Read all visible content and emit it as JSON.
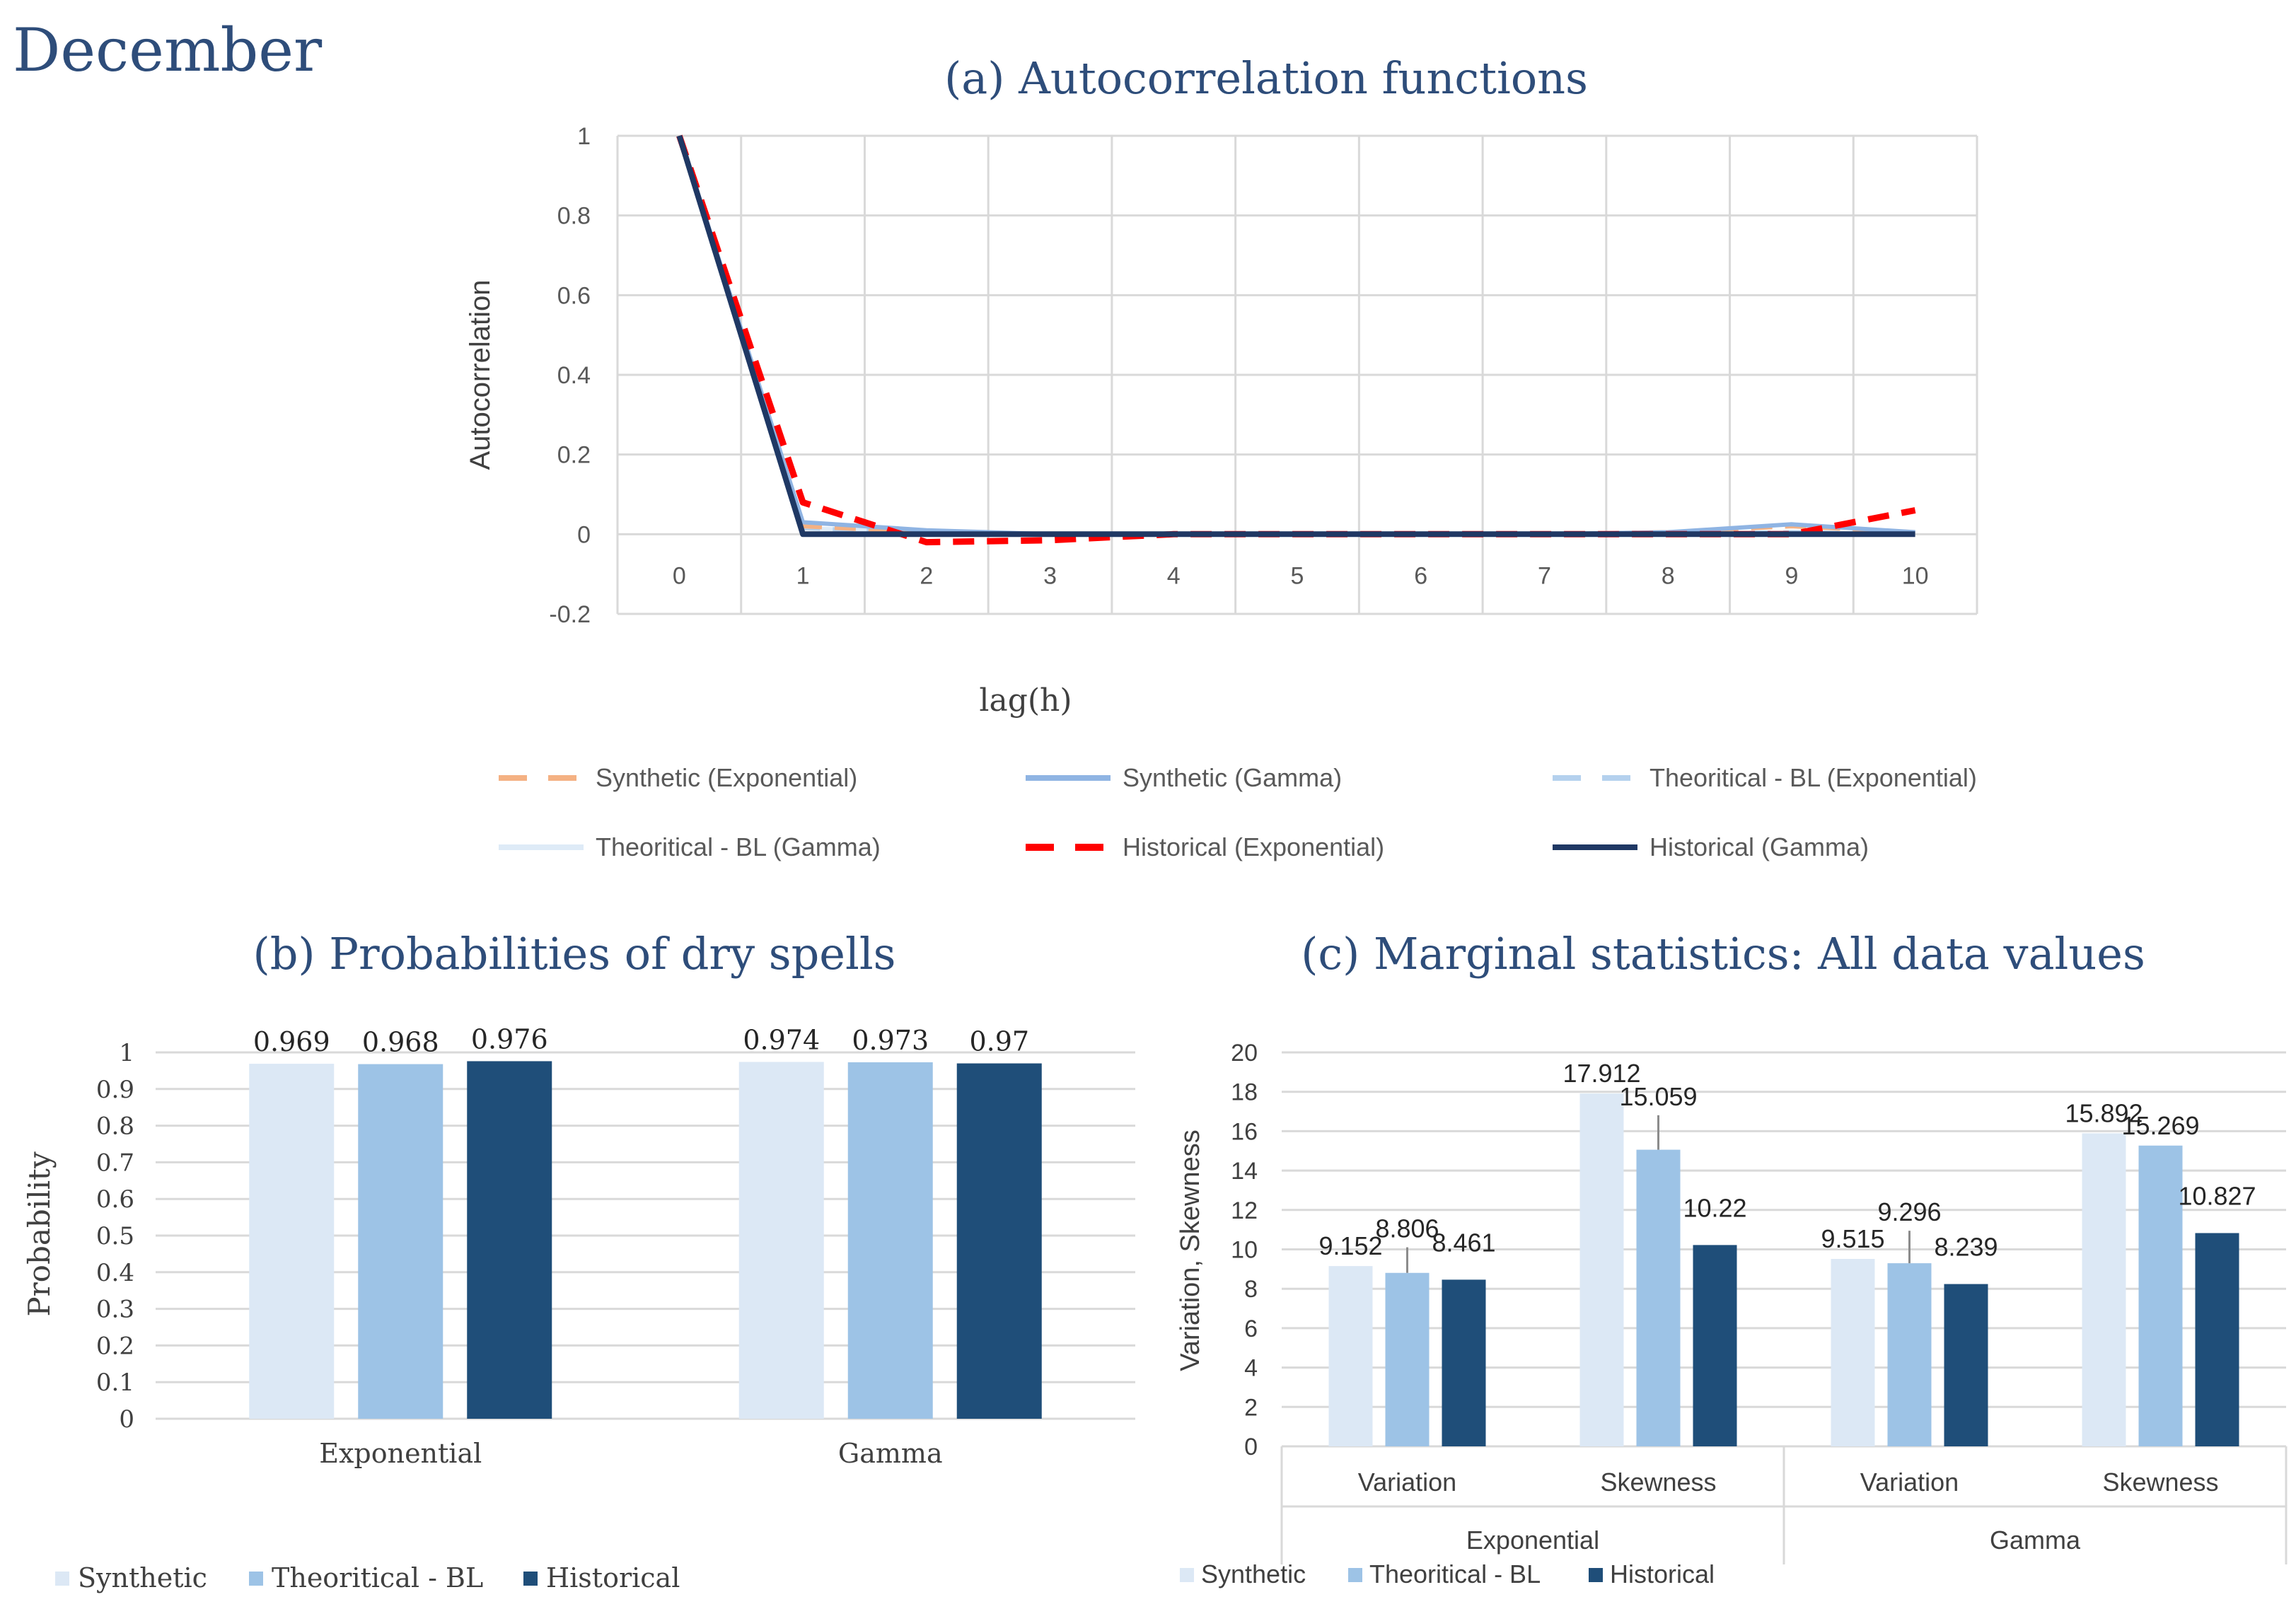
{
  "page_title": "December",
  "colors": {
    "title": "#2e4d7a",
    "synthetic": "#dce8f5",
    "theoritical": "#9dc3e6",
    "historical": "#1f4e79",
    "synthetic_exp_line": "#f4b183",
    "synthetic_gamma_line": "#8fb4e3",
    "theo_exp_line": "#b4d1ee",
    "theo_gamma_line": "#deebf7",
    "hist_exp_line": "#ff0000",
    "hist_gamma_line": "#1f3864",
    "grid": "#d9d9d9",
    "axis_text": "#595959"
  },
  "chart_data": [
    {
      "id": "a",
      "type": "line",
      "title": "(a) Autocorrelation functions",
      "xlabel": "lag(h)",
      "ylabel": "Autocorrelation",
      "x": [
        0,
        1,
        2,
        3,
        4,
        5,
        6,
        7,
        8,
        9,
        10
      ],
      "xticks": [
        "0",
        "1",
        "2",
        "3",
        "4",
        "5",
        "6",
        "7",
        "8",
        "9",
        "10"
      ],
      "yticks": [
        "1",
        "0.8",
        "0.6",
        "0.4",
        "0.2",
        "0",
        "-0.2"
      ],
      "ylim": [
        -0.2,
        1
      ],
      "grid": true,
      "legend_position": "bottom",
      "series": [
        {
          "name": "Synthetic (Exponential)",
          "style": "dashed",
          "color_key": "synthetic_exp_line",
          "values": [
            1,
            0.02,
            0.005,
            0,
            0,
            0,
            0,
            0,
            0.005,
            0.02,
            0.005
          ]
        },
        {
          "name": "Synthetic (Gamma)",
          "style": "solid",
          "color_key": "synthetic_gamma_line",
          "values": [
            1,
            0.03,
            0.01,
            0,
            0,
            0,
            0,
            0,
            0.005,
            0.025,
            0.005
          ]
        },
        {
          "name": "Theoritical - BL (Exponential)",
          "style": "dashed",
          "color_key": "theo_exp_line",
          "values": [
            1,
            0.015,
            0.005,
            0,
            0,
            0,
            0,
            0,
            0,
            0.005,
            0
          ]
        },
        {
          "name": "Theoritical - BL (Gamma)",
          "style": "solid",
          "color_key": "theo_gamma_line",
          "values": [
            1,
            0.015,
            0.005,
            0,
            0,
            0,
            0,
            0,
            0,
            0.005,
            0
          ]
        },
        {
          "name": "Historical (Exponential)",
          "style": "dashed",
          "color_key": "hist_exp_line",
          "values": [
            1,
            0.08,
            -0.02,
            -0.015,
            0,
            0,
            0,
            0,
            0,
            0,
            0.06
          ]
        },
        {
          "name": "Historical (Gamma)",
          "style": "solid",
          "color_key": "hist_gamma_line",
          "values": [
            1,
            0,
            0,
            0,
            0,
            0,
            0,
            0,
            0,
            0,
            0
          ]
        }
      ]
    },
    {
      "id": "b",
      "type": "bar",
      "title": "(b) Probabilities of dry spells",
      "ylabel": "Probability",
      "categories": [
        "Exponential",
        "Gamma"
      ],
      "yticks": [
        "1",
        "0.9",
        "0.8",
        "0.7",
        "0.6",
        "0.5",
        "0.4",
        "0.3",
        "0.2",
        "0.1",
        "0"
      ],
      "ylim": [
        0,
        1
      ],
      "grid": true,
      "legend_position": "bottom",
      "series": [
        {
          "name": "Synthetic",
          "color_key": "synthetic",
          "values": [
            0.969,
            0.974
          ],
          "labels": [
            "0.969",
            "0.974"
          ]
        },
        {
          "name": "Theoritical - BL",
          "color_key": "theoritical",
          "values": [
            0.968,
            0.973
          ],
          "labels": [
            "0.968",
            "0.973"
          ]
        },
        {
          "name": "Historical",
          "color_key": "historical",
          "values": [
            0.976,
            0.97
          ],
          "labels": [
            "0.976",
            "0.97"
          ]
        }
      ]
    },
    {
      "id": "c",
      "type": "bar",
      "title": "(c) Marginal statistics: All data values",
      "ylabel": "Variation, Skewness",
      "categories": [
        "Variation",
        "Skewness",
        "Variation",
        "Skewness"
      ],
      "groups": [
        "Exponential",
        "Gamma"
      ],
      "yticks": [
        "20",
        "18",
        "16",
        "14",
        "12",
        "10",
        "8",
        "6",
        "4",
        "2",
        "0"
      ],
      "ylim": [
        0,
        20
      ],
      "grid": true,
      "legend_position": "bottom",
      "series": [
        {
          "name": "Synthetic",
          "color_key": "synthetic",
          "values": [
            9.152,
            17.912,
            9.515,
            15.892
          ],
          "labels": [
            "9.152",
            "17.912",
            "9.515",
            "15.892"
          ]
        },
        {
          "name": "Theoritical - BL",
          "color_key": "theoritical",
          "values": [
            8.806,
            15.059,
            9.296,
            15.269
          ],
          "labels": [
            "8.806",
            "15.059",
            "9.296",
            "15.269"
          ]
        },
        {
          "name": "Historical",
          "color_key": "historical",
          "values": [
            8.461,
            10.22,
            8.239,
            10.827
          ],
          "labels": [
            "8.461",
            "10.22",
            "8.239",
            "10.827"
          ]
        }
      ]
    }
  ]
}
